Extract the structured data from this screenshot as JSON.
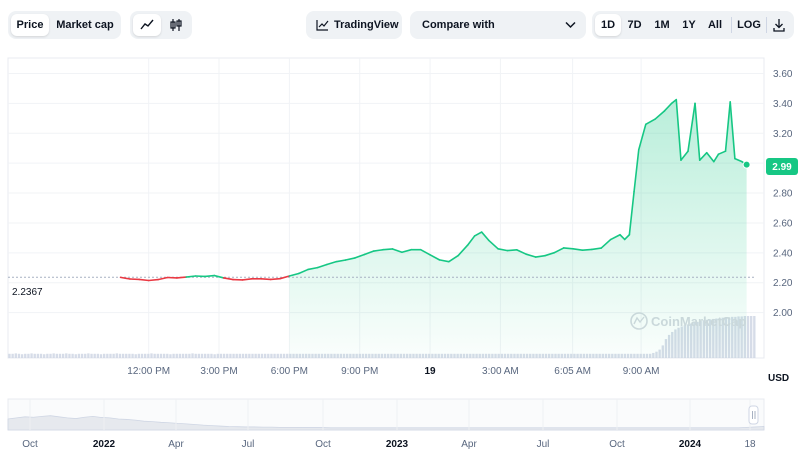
{
  "toolbar": {
    "price_tab": "Price",
    "market_cap_tab": "Market cap",
    "line_icon": "line-chart-icon",
    "candle_icon": "candlestick-icon",
    "tradingview_label": "TradingView",
    "compare_label": "Compare with",
    "ranges": [
      "1D",
      "7D",
      "1M",
      "1Y",
      "All"
    ],
    "active_range": "1D",
    "log_label": "LOG",
    "download_icon": "download-icon"
  },
  "chart_data": {
    "type": "area",
    "y_axis_ticks": [
      "3.60",
      "3.40",
      "3.20",
      "3.00",
      "2.80",
      "2.60",
      "2.40",
      "2.20",
      "2.00"
    ],
    "x_axis_ticks": [
      "12:00 PM",
      "3:00 PM",
      "6:00 PM",
      "9:00 PM",
      "19",
      "3:00 AM",
      "6:05 AM",
      "9:00 AM"
    ],
    "currency_label": "USD",
    "ylim": [
      1.75,
      3.65
    ],
    "open_price": 2.2367,
    "open_price_label": "2.2367",
    "current_price": 2.99,
    "current_price_label": "2.99",
    "up_color": "#16c784",
    "down_color": "#ea3943",
    "watermark": "CoinMarketCap",
    "price_series": [
      [
        10.8,
        2.236
      ],
      [
        11.2,
        2.225
      ],
      [
        11.6,
        2.222
      ],
      [
        12.0,
        2.215
      ],
      [
        12.4,
        2.221
      ],
      [
        12.8,
        2.235
      ],
      [
        13.2,
        2.232
      ],
      [
        13.6,
        2.238
      ],
      [
        14.0,
        2.245
      ],
      [
        14.4,
        2.242
      ],
      [
        14.8,
        2.248
      ],
      [
        15.2,
        2.232
      ],
      [
        15.6,
        2.221
      ],
      [
        16.0,
        2.219
      ],
      [
        16.4,
        2.226
      ],
      [
        16.8,
        2.226
      ],
      [
        17.2,
        2.222
      ],
      [
        17.6,
        2.227
      ],
      [
        18.0,
        2.245
      ],
      [
        18.4,
        2.262
      ],
      [
        18.8,
        2.289
      ],
      [
        19.2,
        2.301
      ],
      [
        19.6,
        2.322
      ],
      [
        20.0,
        2.341
      ],
      [
        20.4,
        2.352
      ],
      [
        20.8,
        2.366
      ],
      [
        21.2,
        2.389
      ],
      [
        21.6,
        2.412
      ],
      [
        22.0,
        2.421
      ],
      [
        22.4,
        2.426
      ],
      [
        22.8,
        2.404
      ],
      [
        23.2,
        2.421
      ],
      [
        23.6,
        2.421
      ],
      [
        24.0,
        2.387
      ],
      [
        24.4,
        2.353
      ],
      [
        24.8,
        2.341
      ],
      [
        25.2,
        2.382
      ],
      [
        25.6,
        2.451
      ],
      [
        25.9,
        2.513
      ],
      [
        26.2,
        2.539
      ],
      [
        26.5,
        2.484
      ],
      [
        26.9,
        2.427
      ],
      [
        27.3,
        2.415
      ],
      [
        27.7,
        2.42
      ],
      [
        28.1,
        2.391
      ],
      [
        28.5,
        2.372
      ],
      [
        28.9,
        2.381
      ],
      [
        29.3,
        2.401
      ],
      [
        29.7,
        2.433
      ],
      [
        30.1,
        2.427
      ],
      [
        30.5,
        2.418
      ],
      [
        30.9,
        2.423
      ],
      [
        31.3,
        2.432
      ],
      [
        31.7,
        2.489
      ],
      [
        32.1,
        2.521
      ],
      [
        32.3,
        2.49
      ],
      [
        32.5,
        2.521
      ],
      [
        32.7,
        2.81
      ],
      [
        32.9,
        3.09
      ],
      [
        33.2,
        3.26
      ],
      [
        33.6,
        3.295
      ],
      [
        34.0,
        3.35
      ],
      [
        34.3,
        3.4
      ],
      [
        34.5,
        3.425
      ],
      [
        34.7,
        3.02
      ],
      [
        35.0,
        3.08
      ],
      [
        35.3,
        3.4
      ],
      [
        35.5,
        3.02
      ],
      [
        35.8,
        3.07
      ],
      [
        36.1,
        3.01
      ],
      [
        36.3,
        3.06
      ],
      [
        36.6,
        3.08
      ],
      [
        36.8,
        3.41
      ],
      [
        37.0,
        3.03
      ],
      [
        37.3,
        3.01
      ],
      [
        37.5,
        2.99
      ]
    ],
    "volume_series": [
      0.1,
      0.1,
      0.11,
      0.1,
      0.09,
      0.1,
      0.1,
      0.11,
      0.1,
      0.1,
      0.1,
      0.09,
      0.1,
      0.1,
      0.11,
      0.1,
      0.1,
      0.1,
      0.11,
      0.1,
      0.1,
      0.09,
      0.1,
      0.1,
      0.1,
      0.11,
      0.1,
      0.1,
      0.1,
      0.09,
      0.1,
      0.1,
      0.1,
      0.1,
      0.11,
      0.1,
      0.1,
      0.1,
      0.1,
      0.1,
      0.09,
      0.1,
      0.1,
      0.1,
      0.1,
      0.11,
      0.1,
      0.1,
      0.1,
      0.1,
      0.1,
      0.09,
      0.1,
      0.1,
      0.1,
      0.1,
      0.1,
      0.1,
      0.11,
      0.1,
      0.1,
      0.1,
      0.1,
      0.1,
      0.1,
      0.09,
      0.1,
      0.1,
      0.1,
      0.1,
      0.1,
      0.1,
      0.1,
      0.1,
      0.1,
      0.1,
      0.1,
      0.1,
      0.1,
      0.1,
      0.1,
      0.1,
      0.1,
      0.1,
      0.1,
      0.1,
      0.1,
      0.1,
      0.1,
      0.1,
      0.1,
      0.1,
      0.1,
      0.1,
      0.1,
      0.1,
      0.1,
      0.1,
      0.1,
      0.1,
      0.1,
      0.1,
      0.1,
      0.1,
      0.1,
      0.1,
      0.1,
      0.1,
      0.1,
      0.1,
      0.1,
      0.1,
      0.1,
      0.1,
      0.1,
      0.1,
      0.1,
      0.1,
      0.1,
      0.1,
      0.1,
      0.1,
      0.1,
      0.1,
      0.1,
      0.1,
      0.1,
      0.1,
      0.1,
      0.1,
      0.1,
      0.1,
      0.1,
      0.1,
      0.1,
      0.1,
      0.1,
      0.1,
      0.1,
      0.1,
      0.1,
      0.1,
      0.1,
      0.1,
      0.1,
      0.1,
      0.1,
      0.1,
      0.1,
      0.1,
      0.1,
      0.1,
      0.1,
      0.1,
      0.1,
      0.1,
      0.1,
      0.1,
      0.1,
      0.1,
      0.1,
      0.1,
      0.1,
      0.1,
      0.1,
      0.1,
      0.1,
      0.1,
      0.1,
      0.1,
      0.1,
      0.1,
      0.1,
      0.1,
      0.1,
      0.1,
      0.1,
      0.1,
      0.1,
      0.1,
      0.1,
      0.1,
      0.1,
      0.1,
      0.1,
      0.1,
      0.1,
      0.1,
      0.1,
      0.1,
      0.1,
      0.1,
      0.1,
      0.1,
      0.1,
      0.1,
      0.1,
      0.1,
      0.1,
      0.1,
      0.1,
      0.1,
      0.1,
      0.1,
      0.12,
      0.15,
      0.2,
      0.3,
      0.45,
      0.55,
      0.62,
      0.68,
      0.72,
      0.75,
      0.78,
      0.8,
      0.82,
      0.85,
      0.86,
      0.88,
      0.9,
      0.91,
      0.92,
      0.93,
      0.94,
      0.95,
      0.96,
      0.97,
      0.97,
      0.98,
      0.98,
      0.99,
      0.99,
      1.0,
      1.0,
      1.0,
      1.0
    ],
    "overview_x_ticks": [
      "Oct",
      "2022",
      "Apr",
      "Jul",
      "Oct",
      "2023",
      "Apr",
      "Jul",
      "Oct",
      "2024",
      "18"
    ],
    "overview_series": [
      0.5,
      0.55,
      0.6,
      0.58,
      0.62,
      0.65,
      0.6,
      0.55,
      0.52,
      0.58,
      0.62,
      0.57,
      0.55,
      0.5,
      0.48,
      0.45,
      0.4,
      0.38,
      0.35,
      0.33,
      0.3,
      0.28,
      0.25,
      0.22,
      0.2,
      0.18,
      0.16,
      0.15,
      0.14,
      0.14,
      0.13,
      0.13,
      0.12,
      0.12,
      0.12,
      0.11,
      0.11,
      0.11,
      0.1,
      0.1,
      0.1,
      0.1,
      0.1,
      0.1,
      0.1,
      0.1,
      0.1,
      0.1,
      0.1,
      0.1,
      0.1,
      0.1,
      0.1,
      0.1,
      0.1,
      0.1,
      0.1,
      0.1,
      0.1,
      0.1,
      0.1,
      0.1,
      0.1,
      0.1,
      0.1,
      0.1,
      0.1,
      0.1,
      0.1,
      0.1,
      0.1,
      0.1,
      0.1,
      0.1,
      0.1,
      0.1,
      0.1,
      0.1,
      0.1,
      0.1,
      0.1,
      0.1,
      0.1,
      0.1,
      0.1,
      0.1,
      0.1,
      0.12,
      0.14,
      0.16
    ]
  }
}
